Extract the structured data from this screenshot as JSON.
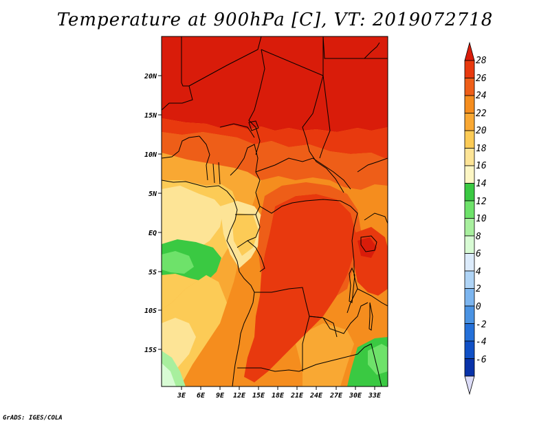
{
  "title": "Temperature at 900hPa [C], VT: 2019072718",
  "credit": "GrADS: IGES/COLA",
  "map": {
    "lat_labels": [
      "20N",
      "15N",
      "10N",
      "5N",
      "EQ",
      "5S",
      "10S",
      "15S"
    ],
    "lon_labels": [
      "3E",
      "6E",
      "9E",
      "12E",
      "15E",
      "18E",
      "21E",
      "24E",
      "27E",
      "30E",
      "33E"
    ]
  },
  "legend": {
    "labels": [
      "28",
      "26",
      "24",
      "22",
      "20",
      "18",
      "16",
      "14",
      "12",
      "10",
      "8",
      "6",
      "4",
      "2",
      "0",
      "-2",
      "-4",
      "-6"
    ],
    "colors": [
      "#d91c0a",
      "#e8390e",
      "#ee5e18",
      "#f58d1e",
      "#f9a833",
      "#fccb56",
      "#fde496",
      "#fdf6c4",
      "#3ac942",
      "#6ee26a",
      "#a8ef9e",
      "#d8fbd4",
      "#dcebfb",
      "#afd4f6",
      "#7cb5ef",
      "#4a93e3",
      "#2470d9",
      "#1050c6",
      "#0832a9",
      "#050c6a"
    ]
  },
  "colors": {
    "deep_red": "#d91c0a",
    "red": "#e8390e",
    "orange_red": "#ee5e18",
    "orange": "#f58d1e",
    "light_orange": "#f9a833",
    "yellow_orange": "#fccb56",
    "light_yellow": "#fde496",
    "green": "#3ac942",
    "light_green": "#a8ef9e"
  }
}
